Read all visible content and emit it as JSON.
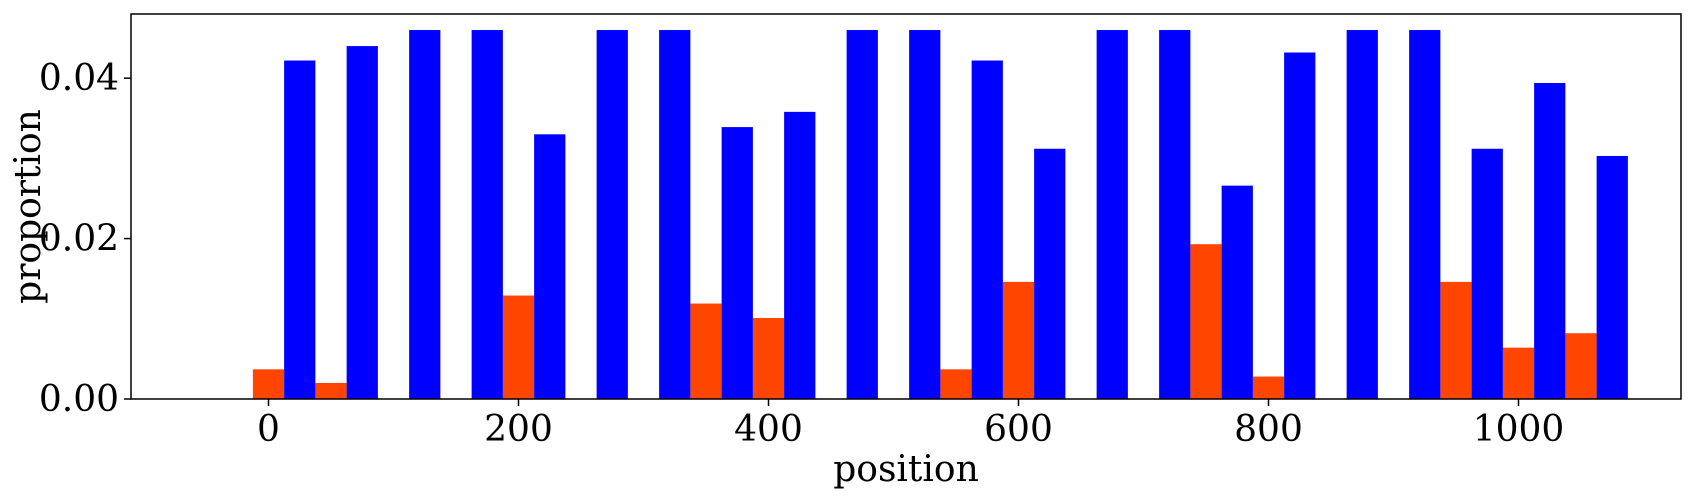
{
  "chart_data": {
    "type": "bar",
    "title": "",
    "xlabel": "position",
    "ylabel": "proportion",
    "xlim": [
      -110,
      1130
    ],
    "ylim": [
      0,
      0.048
    ],
    "xticks": [
      0,
      200,
      400,
      600,
      800,
      1000
    ],
    "xtick_labels": [
      "0",
      "200",
      "400",
      "600",
      "800",
      "1000"
    ],
    "yticks": [
      0,
      0.02,
      0.04
    ],
    "ytick_labels": [
      "0.00",
      "0.02",
      "0.04"
    ],
    "grid": false,
    "legend": null,
    "bar_width": 25,
    "x": [
      0,
      50,
      100,
      150,
      200,
      250,
      300,
      350,
      400,
      450,
      500,
      550,
      600,
      650,
      700,
      750,
      800,
      850,
      900,
      950,
      1000,
      1050
    ],
    "series": [
      {
        "color": "#ff4500",
        "offset": 0,
        "values": [
          0.0037,
          0.002,
          0,
          0,
          0.0129,
          0,
          0,
          0.0119,
          0.0101,
          0,
          0,
          0.0037,
          0.0146,
          0,
          0,
          0.0193,
          0.0028,
          0,
          0,
          0.0146,
          0.0064,
          0.0082
        ]
      },
      {
        "color": "#0000ff",
        "offset": 25,
        "values": [
          0.0422,
          0.044,
          0.046,
          0.046,
          0.033,
          0.046,
          0.046,
          0.0339,
          0.0358,
          0.046,
          0.046,
          0.0422,
          0.0312,
          0.046,
          0.046,
          0.0266,
          0.0432,
          0.046,
          0.046,
          0.0312,
          0.0394,
          0.0303
        ]
      }
    ]
  }
}
